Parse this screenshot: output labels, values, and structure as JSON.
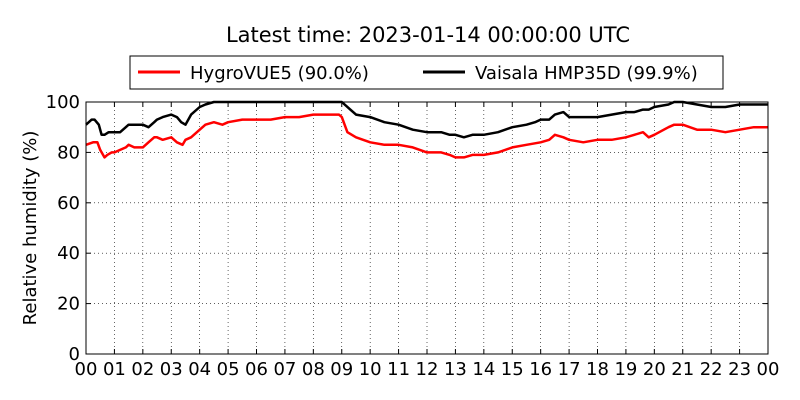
{
  "chart_data": {
    "type": "line",
    "title": "Latest time: 2023-01-14 00:00:00 UTC",
    "xlabel": "",
    "ylabel": "Relative humidity (%)",
    "xlim": [
      0,
      24
    ],
    "ylim": [
      0,
      100
    ],
    "x_ticks": [
      {
        "value": 0,
        "label": "00"
      },
      {
        "value": 1,
        "label": "01"
      },
      {
        "value": 2,
        "label": "02"
      },
      {
        "value": 3,
        "label": "03"
      },
      {
        "value": 4,
        "label": "04"
      },
      {
        "value": 5,
        "label": "05"
      },
      {
        "value": 6,
        "label": "06"
      },
      {
        "value": 7,
        "label": "07"
      },
      {
        "value": 8,
        "label": "08"
      },
      {
        "value": 9,
        "label": "09"
      },
      {
        "value": 10,
        "label": "10"
      },
      {
        "value": 11,
        "label": "11"
      },
      {
        "value": 12,
        "label": "12"
      },
      {
        "value": 13,
        "label": "13"
      },
      {
        "value": 14,
        "label": "14"
      },
      {
        "value": 15,
        "label": "15"
      },
      {
        "value": 16,
        "label": "16"
      },
      {
        "value": 17,
        "label": "17"
      },
      {
        "value": 18,
        "label": "18"
      },
      {
        "value": 19,
        "label": "19"
      },
      {
        "value": 20,
        "label": "20"
      },
      {
        "value": 21,
        "label": "21"
      },
      {
        "value": 22,
        "label": "22"
      },
      {
        "value": 23,
        "label": "23"
      },
      {
        "value": 24,
        "label": "00"
      }
    ],
    "y_ticks": [
      {
        "value": 0,
        "label": "0"
      },
      {
        "value": 20,
        "label": "20"
      },
      {
        "value": 40,
        "label": "40"
      },
      {
        "value": 60,
        "label": "60"
      },
      {
        "value": 80,
        "label": "80"
      },
      {
        "value": 100,
        "label": "100"
      }
    ],
    "grid": true,
    "legend": "top",
    "series": [
      {
        "name": "HygroVUE5 (90.0%)",
        "color": "#ff0000",
        "x": [
          0,
          0.25,
          0.4,
          0.5,
          0.65,
          0.75,
          0.9,
          1.0,
          1.2,
          1.4,
          1.5,
          1.7,
          2.0,
          2.2,
          2.4,
          2.5,
          2.7,
          3.0,
          3.2,
          3.4,
          3.5,
          3.7,
          4.0,
          4.2,
          4.5,
          4.8,
          5.0,
          5.5,
          6.0,
          6.5,
          7.0,
          7.5,
          8.0,
          8.5,
          8.9,
          9.0,
          9.2,
          9.5,
          10.0,
          10.5,
          11.0,
          11.5,
          12.0,
          12.5,
          12.8,
          13.0,
          13.3,
          13.6,
          14.0,
          14.5,
          15.0,
          15.5,
          16.0,
          16.3,
          16.5,
          16.8,
          17.0,
          17.5,
          18.0,
          18.5,
          19.0,
          19.3,
          19.6,
          19.8,
          20.0,
          20.5,
          20.7,
          21.0,
          21.5,
          22.0,
          22.5,
          23.0,
          23.5,
          24.0
        ],
        "values": [
          83,
          84,
          84,
          81,
          78,
          79,
          80,
          80,
          81,
          82,
          83,
          82,
          82,
          84,
          86,
          86,
          85,
          86,
          84,
          83,
          85,
          86,
          89,
          91,
          92,
          91,
          92,
          93,
          93,
          93,
          94,
          94,
          95,
          95,
          95,
          94,
          88,
          86,
          84,
          83,
          83,
          82,
          80,
          80,
          79,
          78,
          78,
          79,
          79,
          80,
          82,
          83,
          84,
          85,
          87,
          86,
          85,
          84,
          85,
          85,
          86,
          87,
          88,
          86,
          87,
          90,
          91,
          91,
          89,
          89,
          88,
          89,
          90,
          90
        ]
      },
      {
        "name": "Vaisala HMP35D (99.9%)",
        "color": "#000000",
        "x": [
          0,
          0.2,
          0.3,
          0.45,
          0.55,
          0.65,
          0.8,
          1.0,
          1.2,
          1.4,
          1.5,
          1.7,
          2.0,
          2.2,
          2.4,
          2.5,
          2.7,
          3.0,
          3.2,
          3.35,
          3.5,
          3.7,
          4.0,
          4.2,
          4.5,
          5.0,
          6.0,
          7.0,
          8.0,
          8.5,
          9.0,
          9.3,
          9.5,
          10.0,
          10.5,
          11.0,
          11.5,
          12.0,
          12.5,
          12.8,
          13.0,
          13.3,
          13.6,
          14.0,
          14.5,
          15.0,
          15.5,
          15.8,
          16.0,
          16.3,
          16.5,
          16.8,
          17.0,
          17.5,
          18.0,
          18.5,
          19.0,
          19.3,
          19.6,
          19.8,
          20.0,
          20.5,
          20.7,
          21.0,
          21.5,
          22.0,
          22.5,
          23.0,
          23.5,
          24.0
        ],
        "values": [
          91,
          93,
          93,
          91,
          87,
          87,
          88,
          88,
          88,
          90,
          91,
          91,
          91,
          90,
          92,
          93,
          94,
          95,
          94,
          92,
          91,
          95,
          98,
          99,
          100,
          100,
          100,
          100,
          100,
          100,
          100,
          97,
          95,
          94,
          92,
          91,
          89,
          88,
          88,
          87,
          87,
          86,
          87,
          87,
          88,
          90,
          91,
          92,
          93,
          93,
          95,
          96,
          94,
          94,
          94,
          95,
          96,
          96,
          97,
          97,
          98,
          99,
          100,
          100,
          99,
          98,
          98,
          99,
          99,
          99
        ]
      }
    ]
  }
}
